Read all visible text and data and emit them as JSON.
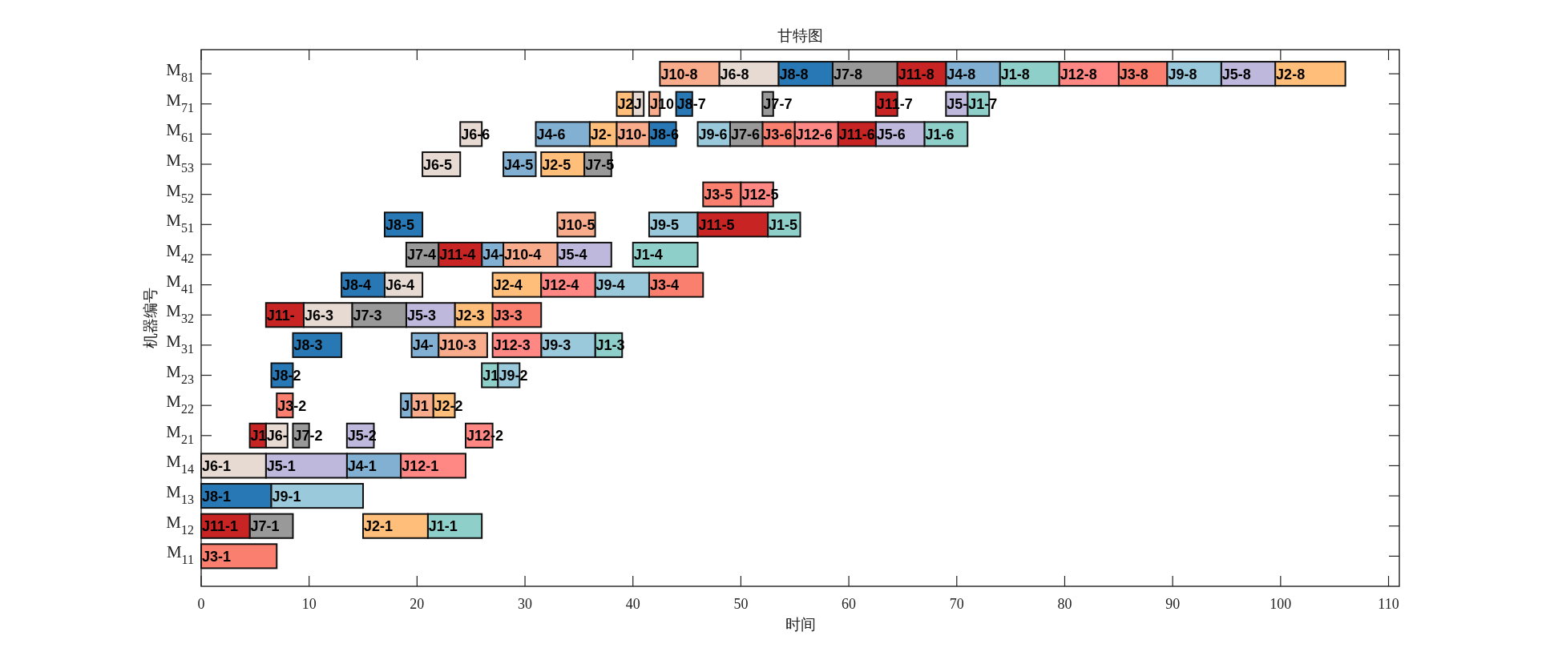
{
  "chart_data": {
    "type": "bar",
    "orientation": "horizontal",
    "title": "甘特图",
    "xlabel": "时间",
    "ylabel": "机器编号",
    "categories": [
      "M$_{81}$",
      "M$_{71}$",
      "M$_{61}$",
      "M$_{53}$",
      "M$_{52}$",
      "M$_{51}$",
      "M$_{42}$",
      "M$_{41}$",
      "M$_{32}$",
      "M$_{31}$",
      "M$_{23}$",
      "M$_{22}$",
      "M$_{21}$",
      "M$_{14}$",
      "M$_{13}$",
      "M$_{12}$",
      "M$_{11}$"
    ],
    "xlim": [
      0,
      111
    ],
    "xticks": [
      0,
      10,
      20,
      30,
      40,
      50,
      60,
      70,
      80,
      90,
      100,
      110
    ],
    "series": [
      {
        "color": "#8ecfc9",
        "base": [
          74,
          71,
          67,
          null,
          null,
          52.5,
          40,
          null,
          null,
          36.5,
          26,
          null,
          null,
          null,
          null,
          21,
          null
        ],
        "values": [
          5.5,
          2,
          4,
          null,
          null,
          3,
          6,
          null,
          null,
          2.5,
          1.5,
          null,
          null,
          null,
          null,
          5,
          null
        ],
        "value_labels": [
          "J1-8",
          "J1-7",
          "J1-6",
          null,
          null,
          "J1-5",
          "J1-4",
          null,
          null,
          "J1-3",
          "J1",
          null,
          null,
          null,
          null,
          "J1-1",
          null
        ]
      },
      {
        "color": "#ffbe7a",
        "base": [
          99.5,
          38.5,
          36,
          31.5,
          null,
          null,
          null,
          27,
          23.5,
          null,
          null,
          21.5,
          null,
          null,
          null,
          15,
          null
        ],
        "values": [
          6.5,
          1.5,
          2.5,
          4,
          null,
          null,
          null,
          4.5,
          3.5,
          null,
          null,
          2,
          null,
          null,
          null,
          6,
          null
        ],
        "value_labels": [
          "J2-8",
          "J2",
          "J2-",
          "J2-5",
          null,
          null,
          null,
          "J2-4",
          "J2-3",
          null,
          null,
          "J2-2",
          null,
          null,
          null,
          "J2-1",
          null
        ]
      },
      {
        "color": "#fa7f6f",
        "base": [
          85,
          null,
          52,
          null,
          46.5,
          null,
          null,
          41.5,
          27,
          null,
          null,
          7,
          null,
          null,
          null,
          null,
          0
        ],
        "values": [
          4.5,
          null,
          3,
          null,
          3.5,
          null,
          null,
          5,
          4.5,
          null,
          null,
          1.5,
          null,
          null,
          null,
          null,
          7
        ],
        "value_labels": [
          "J3-8",
          null,
          "J3-6",
          null,
          "J3-5",
          null,
          null,
          "J3-4",
          "J3-3",
          null,
          null,
          "J3-2",
          null,
          null,
          null,
          null,
          "J3-1"
        ]
      },
      {
        "color": "#82b0d2",
        "base": [
          69,
          null,
          31,
          28,
          null,
          null,
          26,
          null,
          null,
          19.5,
          null,
          18.5,
          null,
          13.5,
          null,
          null,
          null
        ],
        "values": [
          5,
          null,
          5,
          3,
          null,
          null,
          2,
          null,
          null,
          2.5,
          null,
          1,
          null,
          5,
          null,
          null,
          null
        ],
        "value_labels": [
          "J4-8",
          null,
          "J4-6",
          "J4-5",
          null,
          null,
          "J4-",
          null,
          null,
          "J4-",
          null,
          "J",
          null,
          "J4-1",
          null,
          null,
          null
        ]
      },
      {
        "color": "#beb8dc",
        "base": [
          94.5,
          69,
          62.5,
          null,
          null,
          null,
          33,
          null,
          19,
          null,
          null,
          null,
          13.5,
          6,
          null,
          null,
          null
        ],
        "values": [
          5,
          2,
          4.5,
          null,
          null,
          null,
          5,
          null,
          4.5,
          null,
          null,
          null,
          2.5,
          7.5,
          null,
          null,
          null
        ],
        "value_labels": [
          "J5-8",
          "J5-",
          "J5-6",
          null,
          null,
          null,
          "J5-4",
          null,
          "J5-3",
          null,
          null,
          null,
          "J5-2",
          "J5-1",
          null,
          null,
          null
        ]
      },
      {
        "color": "#e7dad2",
        "base": [
          48,
          40,
          24,
          20.5,
          null,
          null,
          null,
          17,
          9.5,
          null,
          null,
          null,
          6,
          0,
          null,
          null,
          null
        ],
        "values": [
          5.5,
          1,
          2,
          3.5,
          null,
          null,
          null,
          3.5,
          4.5,
          null,
          null,
          null,
          2,
          6,
          null,
          null,
          null
        ],
        "value_labels": [
          "J6-8",
          "J",
          "J6-6",
          "J6-5",
          null,
          null,
          null,
          "J6-4",
          "J6-3",
          null,
          null,
          null,
          "J6-",
          "J6-1",
          null,
          null,
          null
        ]
      },
      {
        "color": "#999999",
        "base": [
          58.5,
          52,
          49,
          35.5,
          null,
          null,
          19,
          null,
          14,
          null,
          null,
          null,
          8.5,
          null,
          null,
          4.5,
          null
        ],
        "values": [
          6,
          1,
          3,
          2.5,
          null,
          null,
          3,
          null,
          5,
          null,
          null,
          null,
          1.5,
          null,
          null,
          4,
          null
        ],
        "value_labels": [
          "J7-8",
          "J7-7",
          "J7-6",
          "J7-5",
          null,
          null,
          "J7-4",
          null,
          "J7-3",
          null,
          null,
          null,
          "J7-2",
          null,
          null,
          "J7-1",
          null
        ]
      },
      {
        "color": "#2878b5",
        "base": [
          53.5,
          44,
          41.5,
          null,
          null,
          17,
          null,
          13,
          null,
          8.5,
          6.5,
          null,
          null,
          null,
          0,
          null,
          null
        ],
        "values": [
          5,
          1.5,
          2.5,
          null,
          null,
          3.5,
          null,
          4,
          null,
          4.5,
          2,
          null,
          null,
          null,
          6.5,
          null,
          null
        ],
        "value_labels": [
          "J8-8",
          "J8-7",
          "J8-6",
          null,
          null,
          "J8-5",
          null,
          "J8-4",
          null,
          "J8-3",
          "J8-2",
          null,
          null,
          null,
          "J8-1",
          null,
          null
        ]
      },
      {
        "color": "#9ac9db",
        "base": [
          89.5,
          null,
          46,
          null,
          null,
          41.5,
          null,
          36.5,
          null,
          31.5,
          27.5,
          null,
          null,
          null,
          6.5,
          null,
          null
        ],
        "values": [
          5,
          null,
          3,
          null,
          null,
          4.5,
          null,
          5,
          null,
          5,
          2,
          null,
          null,
          null,
          8.5,
          null,
          null
        ],
        "value_labels": [
          "J9-8",
          null,
          "J9-6",
          null,
          null,
          "J9-5",
          null,
          "J9-4",
          null,
          "J9-3",
          "J9-2",
          null,
          null,
          null,
          "J9-1",
          null,
          null
        ]
      },
      {
        "color": "#f8ac8c",
        "base": [
          42.5,
          41.5,
          38.5,
          null,
          null,
          33,
          28,
          null,
          null,
          22,
          null,
          19.5,
          null,
          null,
          null,
          null,
          null
        ],
        "values": [
          5.5,
          1,
          3,
          null,
          null,
          3.5,
          5,
          null,
          null,
          4.5,
          null,
          2,
          null,
          null,
          null,
          null,
          null
        ],
        "value_labels": [
          "J10-8",
          "J10",
          "J10-",
          null,
          null,
          "J10-5",
          "J10-4",
          null,
          null,
          "J10-3",
          null,
          "J1",
          null,
          null,
          null,
          null,
          null
        ]
      },
      {
        "color": "#c82423",
        "base": [
          64.5,
          62.5,
          59,
          null,
          null,
          46,
          22,
          null,
          6,
          null,
          null,
          null,
          4.5,
          null,
          null,
          0,
          null
        ],
        "values": [
          4.5,
          2,
          3.5,
          null,
          null,
          6.5,
          4,
          null,
          3.5,
          null,
          null,
          null,
          1.5,
          null,
          null,
          4.5,
          null
        ],
        "value_labels": [
          "J11-8",
          "J11-7",
          "J11-6",
          null,
          null,
          "J11-5",
          "J11-4",
          null,
          "J11-",
          null,
          null,
          null,
          "J1",
          null,
          null,
          "J11-1",
          null
        ]
      },
      {
        "color": "#ff8884",
        "base": [
          79.5,
          null,
          55,
          null,
          50,
          null,
          null,
          31.5,
          null,
          27,
          null,
          null,
          24.5,
          18.5,
          null,
          null,
          null
        ],
        "values": [
          5.5,
          null,
          4,
          null,
          3,
          null,
          null,
          5,
          null,
          4.5,
          null,
          null,
          2.5,
          6,
          null,
          null,
          null
        ],
        "value_labels": [
          "J12-8",
          null,
          "J12-6",
          null,
          "J12-5",
          null,
          null,
          "J12-4",
          null,
          "J12-3",
          null,
          null,
          "J12-2",
          "J12-1",
          null,
          null,
          null
        ]
      }
    ]
  }
}
